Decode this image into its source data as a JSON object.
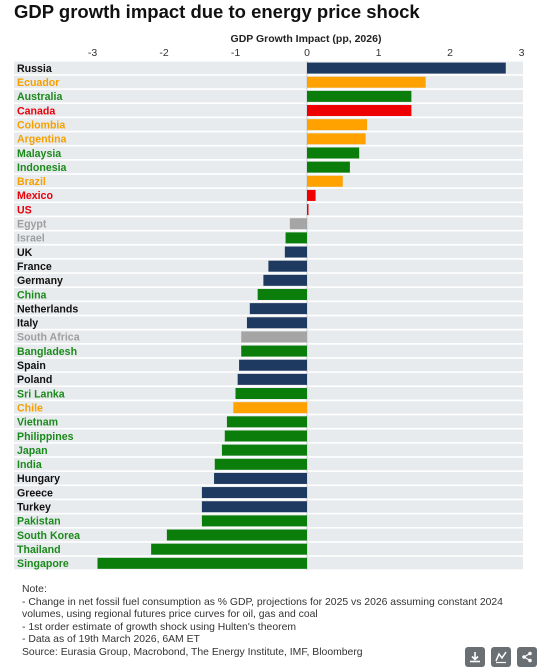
{
  "header": {
    "title": "GDP growth impact due to energy price shock"
  },
  "chart_data": {
    "type": "bar",
    "orientation": "horizontal",
    "axis_label": "GDP Growth Impact (pp, 2026)",
    "xlim": [
      -3.2,
      3.1
    ],
    "ticks": [
      -3,
      -2,
      -1,
      0,
      1,
      2,
      3
    ],
    "grid": "row bands",
    "label_colors": {
      "exporter": "#f5a000",
      "green": "#1b8a1b",
      "red": "#e8000b",
      "gray": "#9e9e9e",
      "dark": "#111111"
    },
    "bar_colors": {
      "navy": "#1f3a60",
      "orange": "#ffa200",
      "green": "#0a7d0a",
      "red": "#ee0000",
      "gray": "#a5a5a5"
    },
    "rows": [
      {
        "label": "Russia",
        "value": 2.78,
        "bar": "navy",
        "text": "dark"
      },
      {
        "label": "Ecuador",
        "value": 1.66,
        "bar": "orange",
        "text": "exporter"
      },
      {
        "label": "Australia",
        "value": 1.46,
        "bar": "green",
        "text": "green"
      },
      {
        "label": "Canada",
        "value": 1.46,
        "bar": "red",
        "text": "red"
      },
      {
        "label": "Colombia",
        "value": 0.84,
        "bar": "orange",
        "text": "exporter"
      },
      {
        "label": "Argentina",
        "value": 0.82,
        "bar": "orange",
        "text": "exporter"
      },
      {
        "label": "Malaysia",
        "value": 0.73,
        "bar": "green",
        "text": "green"
      },
      {
        "label": "Indonesia",
        "value": 0.6,
        "bar": "green",
        "text": "green"
      },
      {
        "label": "Brazil",
        "value": 0.5,
        "bar": "orange",
        "text": "exporter"
      },
      {
        "label": "Mexico",
        "value": 0.12,
        "bar": "red",
        "text": "red"
      },
      {
        "label": "US",
        "value": 0.02,
        "bar": "red",
        "text": "red"
      },
      {
        "label": "Egypt",
        "value": -0.24,
        "bar": "gray",
        "text": "gray"
      },
      {
        "label": "Israel",
        "value": -0.3,
        "bar": "green",
        "text": "gray"
      },
      {
        "label": "UK",
        "value": -0.31,
        "bar": "navy",
        "text": "dark"
      },
      {
        "label": "France",
        "value": -0.54,
        "bar": "navy",
        "text": "dark"
      },
      {
        "label": "Germany",
        "value": -0.61,
        "bar": "navy",
        "text": "dark"
      },
      {
        "label": "China",
        "value": -0.69,
        "bar": "green",
        "text": "green"
      },
      {
        "label": "Netherlands",
        "value": -0.8,
        "bar": "navy",
        "text": "dark"
      },
      {
        "label": "Italy",
        "value": -0.84,
        "bar": "navy",
        "text": "dark"
      },
      {
        "label": "South Africa",
        "value": -0.92,
        "bar": "gray",
        "text": "gray"
      },
      {
        "label": "Bangladesh",
        "value": -0.92,
        "bar": "green",
        "text": "green"
      },
      {
        "label": "Spain",
        "value": -0.95,
        "bar": "navy",
        "text": "dark"
      },
      {
        "label": "Poland",
        "value": -0.97,
        "bar": "navy",
        "text": "dark"
      },
      {
        "label": "Sri Lanka",
        "value": -1.0,
        "bar": "green",
        "text": "green"
      },
      {
        "label": "Chile",
        "value": -1.03,
        "bar": "orange",
        "text": "exporter"
      },
      {
        "label": "Vietnam",
        "value": -1.12,
        "bar": "green",
        "text": "green"
      },
      {
        "label": "Philippines",
        "value": -1.15,
        "bar": "green",
        "text": "green"
      },
      {
        "label": "Japan",
        "value": -1.19,
        "bar": "green",
        "text": "green"
      },
      {
        "label": "India",
        "value": -1.29,
        "bar": "green",
        "text": "green"
      },
      {
        "label": "Hungary",
        "value": -1.3,
        "bar": "navy",
        "text": "dark"
      },
      {
        "label": "Greece",
        "value": -1.47,
        "bar": "navy",
        "text": "dark"
      },
      {
        "label": "Turkey",
        "value": -1.47,
        "bar": "navy",
        "text": "dark"
      },
      {
        "label": "Pakistan",
        "value": -1.47,
        "bar": "green",
        "text": "green"
      },
      {
        "label": "South Korea",
        "value": -1.96,
        "bar": "green",
        "text": "green"
      },
      {
        "label": "Thailand",
        "value": -2.18,
        "bar": "green",
        "text": "green"
      },
      {
        "label": "Singapore",
        "value": -2.93,
        "bar": "green",
        "text": "green"
      }
    ]
  },
  "notes": {
    "heading": "Note:",
    "lines": [
      "- Change in net fossil fuel consumption as % GDP, projections for 2025 vs 2026 assuming constant 2024 volumes, using regional futures price curves for oil, gas and coal",
      "- 1st order estimate of growth shock using Hulten's theorem",
      "- Data as of 19th March 2026, 6AM ET"
    ],
    "source": "Source: Eurasia Group, Macrobond, The Energy Institute, IMF, Bloomberg"
  },
  "toolbar": {
    "icons": [
      "download-icon",
      "edit-chart-icon",
      "share-icon"
    ]
  }
}
